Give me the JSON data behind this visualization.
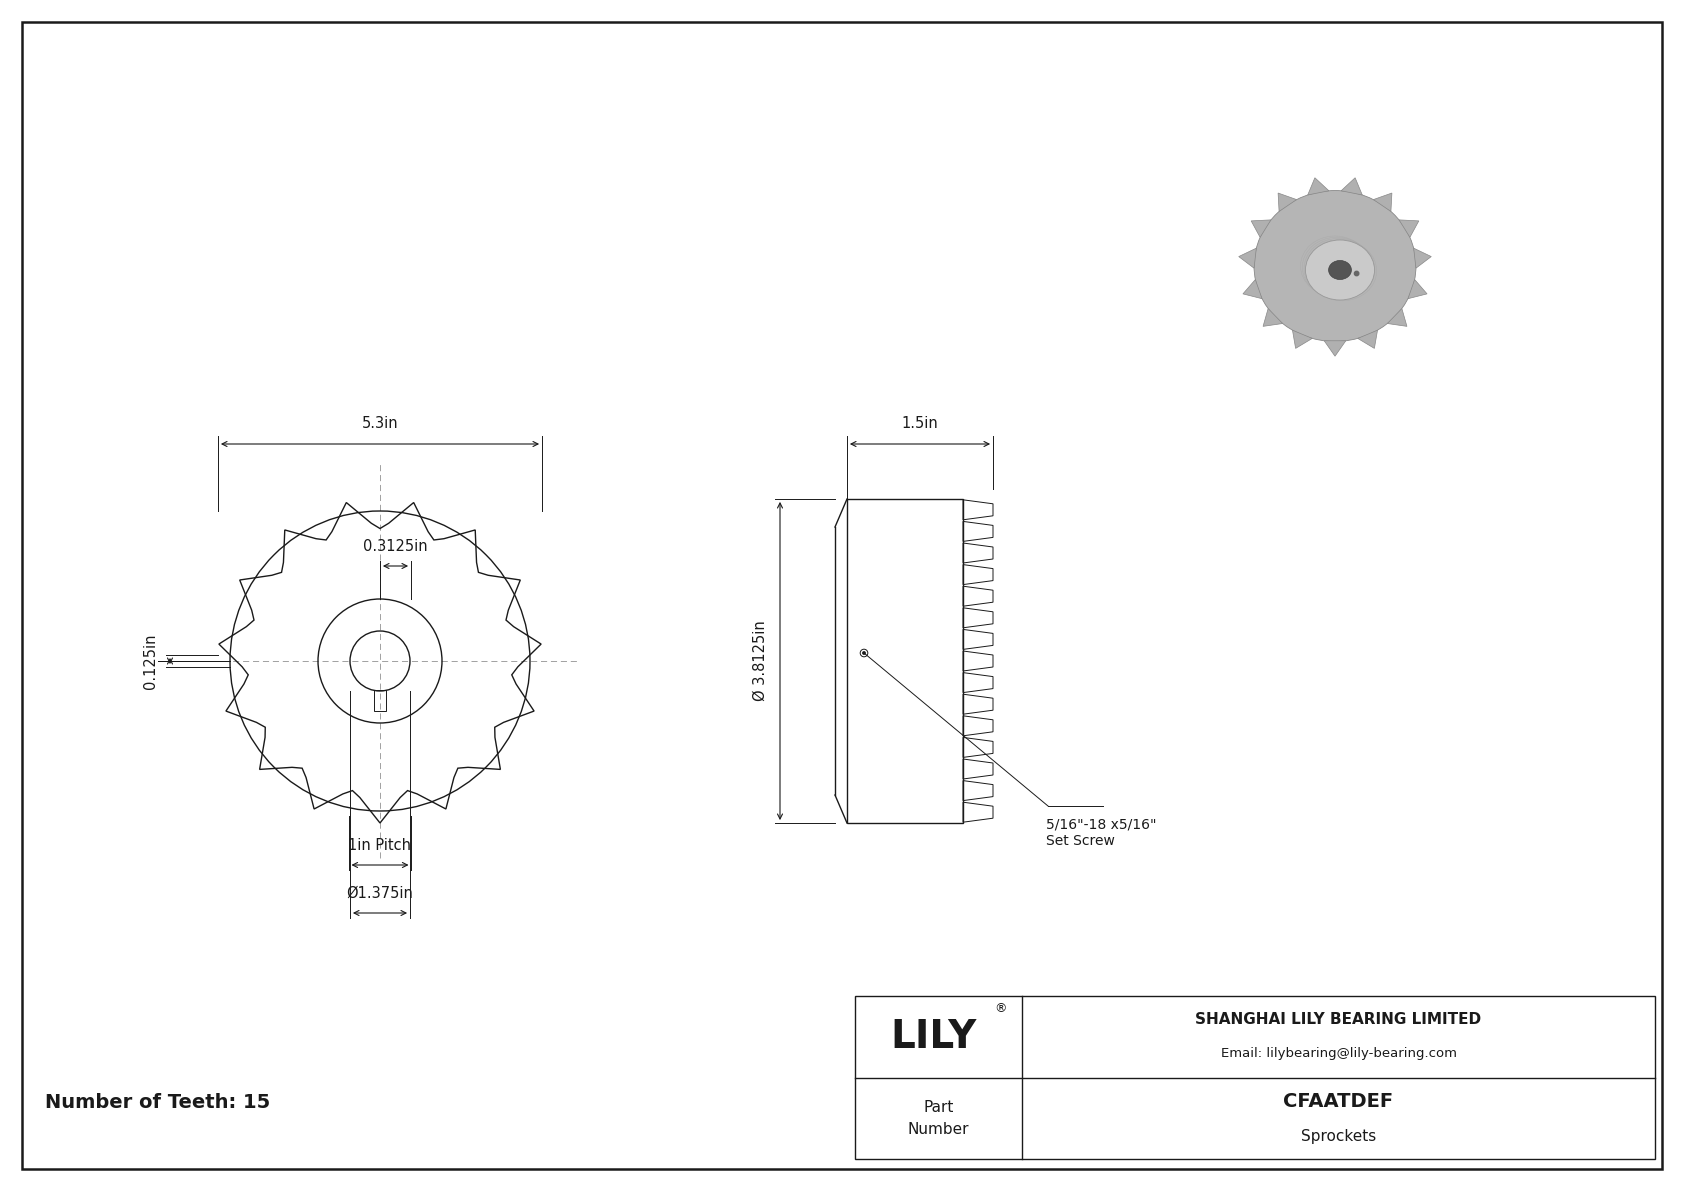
{
  "bg_color": "#ffffff",
  "line_color": "#1a1a1a",
  "dim_color": "#1a1a1a",
  "title_text": "Number of Teeth: 15",
  "company": "SHANGHAI LILY BEARING LIMITED",
  "email": "Email: lilybearing@lily-bearing.com",
  "part_number_label": "Part\nNumber",
  "part_number": "CFAATDEF",
  "category": "Sprockets",
  "brand": "LILY",
  "dim_5_3": "5.3in",
  "dim_0_3125": "0.3125in",
  "dim_0_125": "0.125in",
  "dim_1_5": "1.5in",
  "dim_3_8125": "Ø 3.8125in",
  "dim_1in_pitch": "1in Pitch",
  "dim_1_375": "Ø1.375in",
  "dim_set_screw": "5/16\"-18 x5/16\"\nSet Screw",
  "num_teeth": 15
}
